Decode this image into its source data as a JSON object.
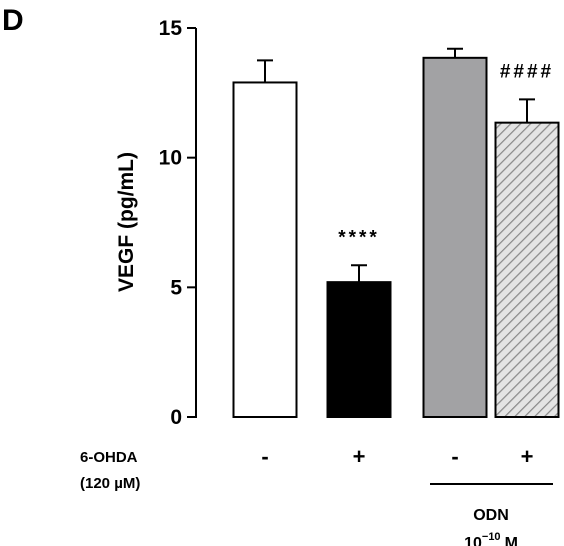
{
  "chart_data": {
    "type": "bar",
    "panel": "D",
    "y_label": "VEGF (pg/mL)",
    "categories": [
      "-",
      "+",
      "-",
      "+"
    ],
    "values": [
      12.9,
      5.2,
      13.85,
      11.35
    ],
    "errors": [
      0.85,
      0.65,
      0.35,
      0.9
    ],
    "colors": [
      "#ffffff",
      "#000000",
      "#a2a2a4",
      "#e4e4e4"
    ],
    "hatch": [
      false,
      false,
      false,
      true
    ],
    "annotations": [
      null,
      "****",
      null,
      "####"
    ],
    "ylim": [
      0,
      15
    ],
    "yticks": [
      0,
      5,
      10,
      15
    ],
    "row_label": [
      "6-OHDA",
      "(120 µM)"
    ],
    "group_label": {
      "name": "ODN",
      "conc": "10",
      "exp": "−10",
      "unit": "M"
    }
  }
}
